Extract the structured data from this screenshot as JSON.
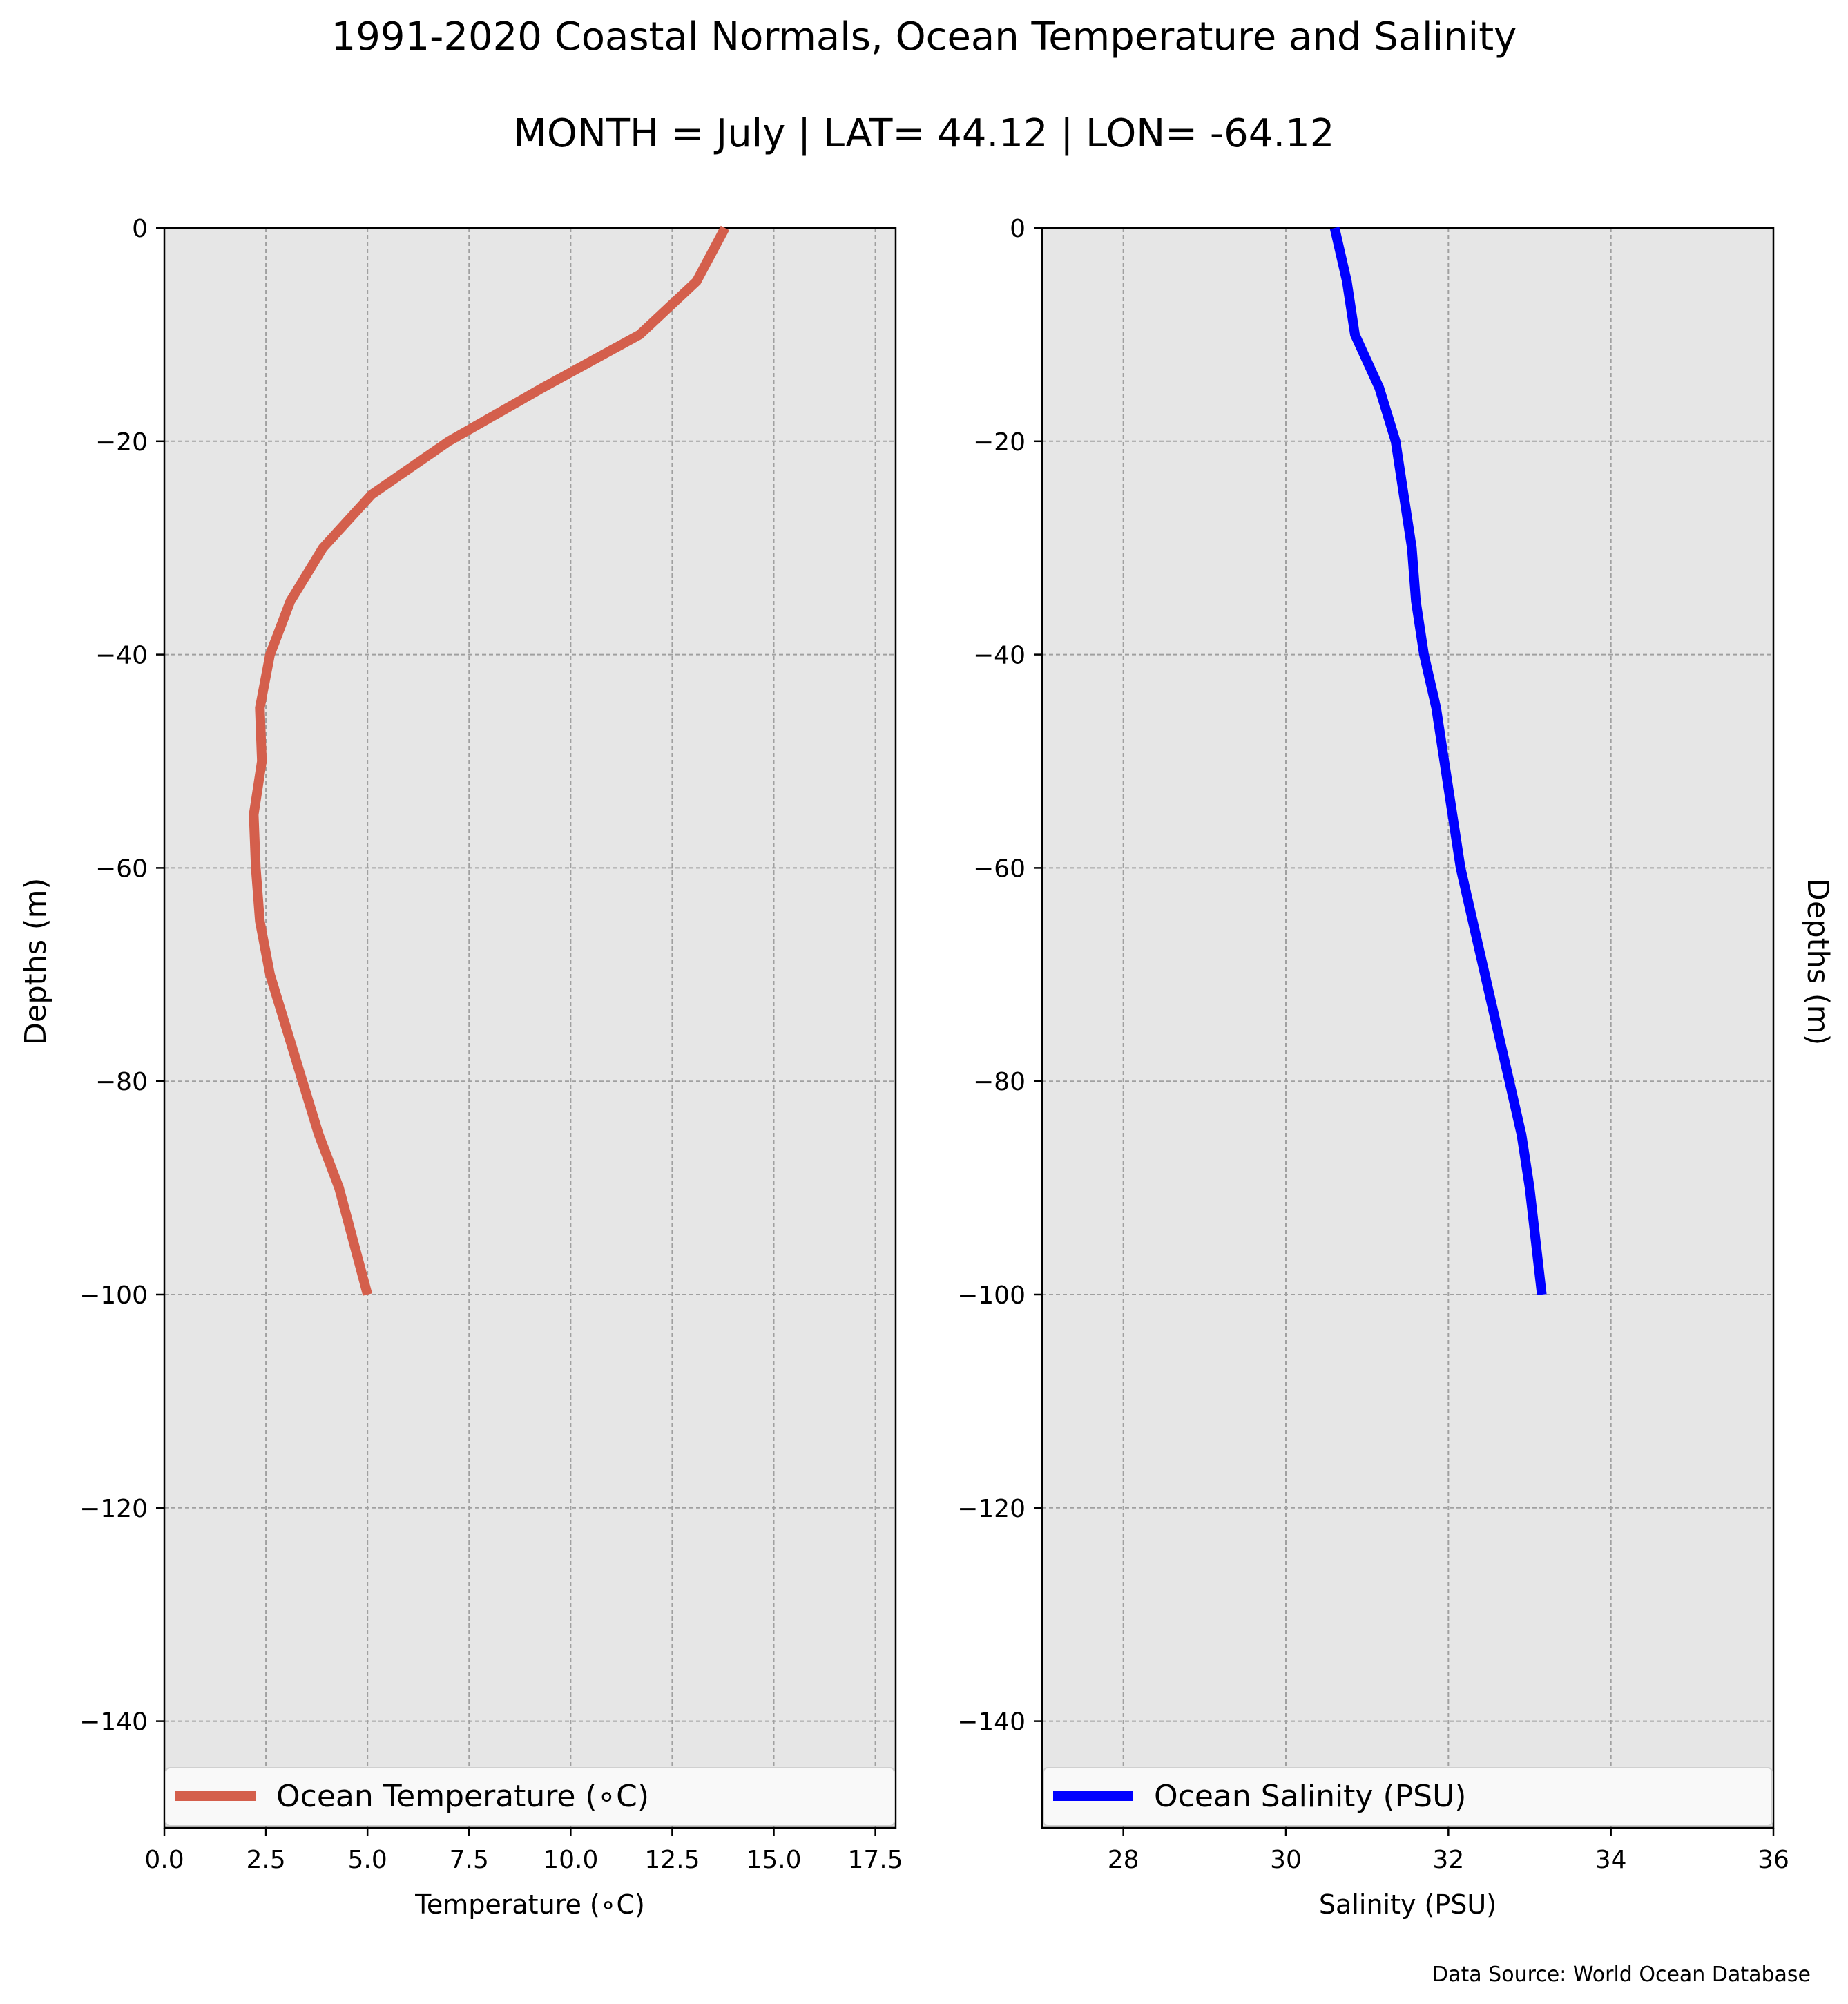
{
  "figure": {
    "title": "1991-2020 Coastal Normals, Ocean Temperature and Salinity",
    "subtitle": "MONTH = July | LAT= 44.12 | LON= -64.12",
    "source_note": "Data Source: World Ocean Database"
  },
  "colors": {
    "plot_background": "#e6e6e6",
    "grid": "#a0a0a0",
    "temperature_line": "#d45f4c",
    "salinity_line": "#0000ff"
  },
  "chart_data": [
    {
      "type": "line",
      "xlabel": "Temperature ($^\\circ$C)",
      "xlabel_display": "Temperature (∘C)",
      "ylabel": "Depths (m)",
      "xlim": [
        0,
        18
      ],
      "ylim": [
        -150,
        0
      ],
      "xticks": [
        0,
        2.5,
        5,
        7.5,
        10,
        12.5,
        15,
        17.5
      ],
      "xtick_labels": [
        "0.0",
        "2.5",
        "5.0",
        "7.5",
        "10.0",
        "12.5",
        "15.0",
        "17.5"
      ],
      "yticks": [
        0,
        -20,
        -40,
        -60,
        -80,
        -100,
        -120,
        -140
      ],
      "ytick_labels": [
        "0",
        "−20",
        "−40",
        "−60",
        "−80",
        "−100",
        "−120",
        "−140"
      ],
      "grid": true,
      "legend_position": "bottom",
      "series": [
        {
          "name": "Ocean Temperature (∘C)",
          "color": "#d45f4c",
          "x": [
            13.8,
            13.1,
            11.7,
            9.3,
            7.0,
            5.1,
            3.9,
            3.1,
            2.6,
            2.35,
            2.4,
            2.2,
            2.25,
            2.35,
            2.6,
            3.0,
            3.4,
            3.8,
            4.3,
            5.0
          ],
          "y": [
            0,
            -5,
            -10,
            -15,
            -20,
            -25,
            -30,
            -35,
            -40,
            -45,
            -50,
            -55,
            -60,
            -65,
            -70,
            -75,
            -80,
            -85,
            -90,
            -100
          ]
        }
      ]
    },
    {
      "type": "line",
      "xlabel": "Salinity (PSU)",
      "ylabel": "Depths (m)",
      "xlim": [
        27,
        36
      ],
      "ylim": [
        -150,
        0
      ],
      "xticks": [
        28,
        30,
        32,
        34,
        36
      ],
      "xtick_labels": [
        "28",
        "30",
        "32",
        "34",
        "36"
      ],
      "yticks": [
        0,
        -20,
        -40,
        -60,
        -80,
        -100,
        -120,
        -140
      ],
      "ytick_labels": [
        "0",
        "−20",
        "−40",
        "−60",
        "−80",
        "−100",
        "−120",
        "−140"
      ],
      "grid": true,
      "legend_position": "bottom",
      "series": [
        {
          "name": "Ocean Salinity (PSU)",
          "color": "#0000ff",
          "x": [
            30.6,
            30.75,
            30.85,
            31.15,
            31.35,
            31.45,
            31.55,
            31.6,
            31.7,
            31.85,
            31.95,
            32.05,
            32.15,
            32.3,
            32.45,
            32.6,
            32.75,
            32.9,
            33.0,
            33.15
          ],
          "y": [
            0,
            -5,
            -10,
            -15,
            -20,
            -25,
            -30,
            -35,
            -40,
            -45,
            -50,
            -55,
            -60,
            -65,
            -70,
            -75,
            -80,
            -85,
            -90,
            -100
          ]
        }
      ]
    }
  ]
}
